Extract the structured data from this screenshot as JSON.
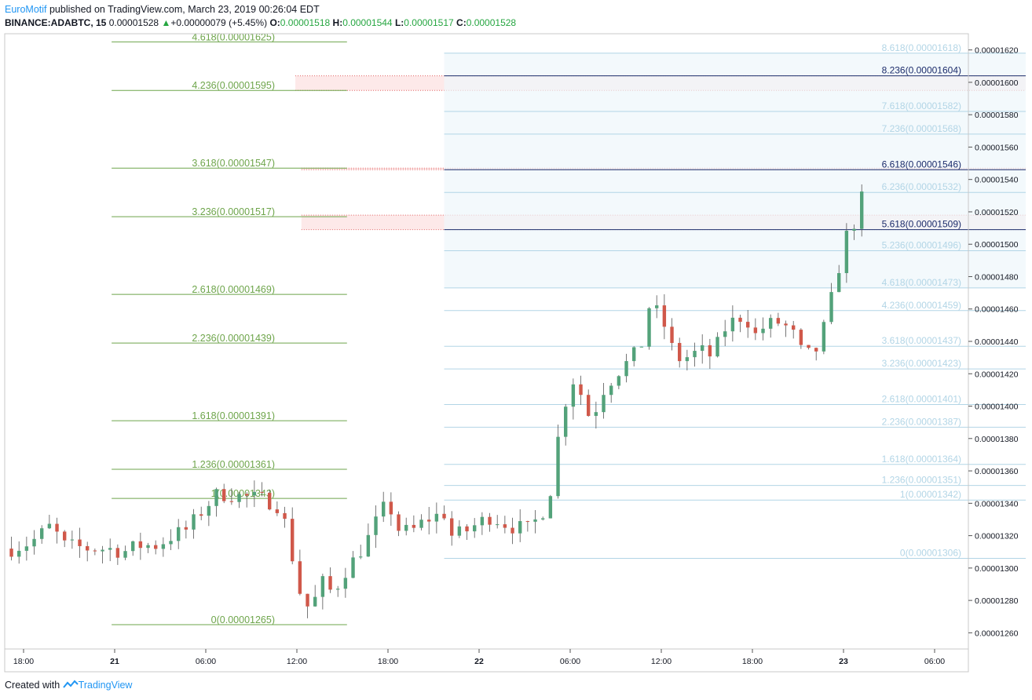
{
  "header": {
    "author": "EuroMotif",
    "published_text": " published on TradingView.com, March 23, 2019 00:26:04 EDT",
    "symbol": "BINANCE:ADABTC, 15",
    "last": "0.00001528",
    "change": "+0.00000079 (+5.45%)",
    "o_label": "O:",
    "o_value": "0.00001518",
    "h_label": "H:",
    "h_value": "0.00001544",
    "l_label": "L:",
    "l_value": "0.00001517",
    "c_label": "C:",
    "c_value": "0.00001528"
  },
  "footer": {
    "created_with": "Created with",
    "brand": "TradingView"
  },
  "colors": {
    "up": "#53a27a",
    "down": "#d0584a",
    "fib_left": "#6ea54b",
    "fib_right": "#b2d5e6",
    "fib_right_dark": "#1c2c6b",
    "axis": "#131722",
    "grid_border": "#c8c8c8"
  },
  "chart_data": {
    "type": "candlestick",
    "y_axis": {
      "min": 1.25e-05,
      "max": 1.63e-05,
      "ticks": [
        "0.00001260",
        "0.00001280",
        "0.00001300",
        "0.00001320",
        "0.00001340",
        "0.00001360",
        "0.00001380",
        "0.00001400",
        "0.00001420",
        "0.00001440",
        "0.00001460",
        "0.00001480",
        "0.00001500",
        "0.00001520",
        "0.00001540",
        "0.00001560",
        "0.00001580",
        "0.00001600",
        "0.00001620"
      ]
    },
    "x_axis": {
      "labels": [
        {
          "t": 18,
          "text": "18:00",
          "bold": false
        },
        {
          "t": 24,
          "text": "21",
          "bold": true
        },
        {
          "t": 30,
          "text": "06:00",
          "bold": false
        },
        {
          "t": 36,
          "text": "12:00",
          "bold": false
        },
        {
          "t": 42,
          "text": "18:00",
          "bold": false
        },
        {
          "t": 48,
          "text": "22",
          "bold": true
        },
        {
          "t": 54,
          "text": "06:00",
          "bold": false
        },
        {
          "t": 60,
          "text": "12:00",
          "bold": false
        },
        {
          "t": 66,
          "text": "18:00",
          "bold": false
        },
        {
          "t": 72,
          "text": "23",
          "bold": true
        },
        {
          "t": 78,
          "text": "06:00",
          "bold": false
        }
      ],
      "t_start": 17.2,
      "t_end": 84.0
    },
    "price_path": [
      [
        17.2,
        1.312e-05
      ],
      [
        18.5,
        1.316e-05
      ],
      [
        19.8,
        1.326e-05
      ],
      [
        20.7,
        1.314e-05
      ],
      [
        22.3,
        1.312e-05
      ],
      [
        23.6,
        1.312e-05
      ],
      [
        24.6,
        1.31e-05
      ],
      [
        25.6,
        1.314e-05
      ],
      [
        26.8,
        1.314e-05
      ],
      [
        27.8,
        1.32e-05
      ],
      [
        28.8,
        1.324e-05
      ],
      [
        29.8,
        1.336e-05
      ],
      [
        30.8,
        1.346e-05
      ],
      [
        32.6,
        1.344e-05
      ],
      [
        34.0,
        1.342e-05
      ],
      [
        34.9,
        1.338e-05
      ],
      [
        35.5,
        1.318e-05
      ],
      [
        36.0,
        1.29e-05
      ],
      [
        36.6,
        1.276e-05
      ],
      [
        37.1,
        1.278e-05
      ],
      [
        37.6,
        1.292e-05
      ],
      [
        38.4,
        1.284e-05
      ],
      [
        39.0,
        1.296e-05
      ],
      [
        40.0,
        1.308e-05
      ],
      [
        40.8,
        1.32e-05
      ],
      [
        41.6,
        1.336e-05
      ],
      [
        42.1,
        1.338e-05
      ],
      [
        42.7,
        1.324e-05
      ],
      [
        43.5,
        1.322e-05
      ],
      [
        44.5,
        1.33e-05
      ],
      [
        45.8,
        1.334e-05
      ],
      [
        46.2,
        1.32e-05
      ],
      [
        47.0,
        1.322e-05
      ],
      [
        48.0,
        1.328e-05
      ],
      [
        48.8,
        1.332e-05
      ],
      [
        50.0,
        1.326e-05
      ],
      [
        51.2,
        1.324e-05
      ],
      [
        52.0,
        1.332e-05
      ],
      [
        52.6,
        1.342e-05
      ],
      [
        53.2,
        1.38e-05
      ],
      [
        53.8,
        1.408e-05
      ],
      [
        54.3,
        1.418e-05
      ],
      [
        55.0,
        1.4e-05
      ],
      [
        55.4,
        1.39e-05
      ],
      [
        56.0,
        1.408e-05
      ],
      [
        57.0,
        1.42e-05
      ],
      [
        58.1,
        1.43e-05
      ],
      [
        58.8,
        1.44e-05
      ],
      [
        59.1,
        1.462e-05
      ],
      [
        59.7,
        1.458e-05
      ],
      [
        60.3,
        1.448e-05
      ],
      [
        60.7,
        1.436e-05
      ],
      [
        61.3,
        1.428e-05
      ],
      [
        62.0,
        1.432e-05
      ],
      [
        62.8,
        1.434e-05
      ],
      [
        63.4,
        1.43e-05
      ],
      [
        64.0,
        1.446e-05
      ],
      [
        64.9,
        1.454e-05
      ],
      [
        65.5,
        1.456e-05
      ],
      [
        66.3,
        1.442e-05
      ],
      [
        66.8,
        1.45e-05
      ],
      [
        67.9,
        1.452e-05
      ],
      [
        68.7,
        1.444e-05
      ],
      [
        69.4,
        1.43e-05
      ],
      [
        70.4,
        1.436e-05
      ],
      [
        71.0,
        1.46e-05
      ],
      [
        71.6,
        1.478e-05
      ],
      [
        72.0,
        1.51e-05
      ],
      [
        72.5,
        1.498e-05
      ],
      [
        73.0,
        1.536e-05
      ],
      [
        73.2,
        1.528e-05
      ]
    ],
    "fib_left": {
      "x_start": 23.8,
      "x_end": 39.3,
      "levels": [
        {
          "label": "4.618(0.00001625)",
          "price": 1.625e-05
        },
        {
          "label": "4.236(0.00001595)",
          "price": 1.595e-05
        },
        {
          "label": "3.618(0.00001547)",
          "price": 1.547e-05
        },
        {
          "label": "3.236(0.00001517)",
          "price": 1.517e-05
        },
        {
          "label": "2.618(0.00001469)",
          "price": 1.469e-05
        },
        {
          "label": "2.236(0.00001439)",
          "price": 1.439e-05
        },
        {
          "label": "1.618(0.00001391)",
          "price": 1.391e-05
        },
        {
          "label": "1.236(0.00001361)",
          "price": 1.361e-05
        },
        {
          "label": "1(0.00001343)",
          "price": 1.343e-05
        },
        {
          "label": "0(0.00001265)",
          "price": 1.265e-05
        }
      ]
    },
    "fib_right": {
      "x_start": 45.7,
      "x_end": 84.0,
      "levels": [
        {
          "label": "8.618(0.00001618)",
          "price": 1.618e-05,
          "emph": false
        },
        {
          "label": "8.236(0.00001604)",
          "price": 1.604e-05,
          "emph": true
        },
        {
          "label": "7.618(0.00001582)",
          "price": 1.582e-05,
          "emph": false
        },
        {
          "label": "7.236(0.00001568)",
          "price": 1.568e-05,
          "emph": false
        },
        {
          "label": "6.618(0.00001546)",
          "price": 1.546e-05,
          "emph": true
        },
        {
          "label": "6.236(0.00001532)",
          "price": 1.532e-05,
          "emph": false
        },
        {
          "label": "5.618(0.00001509)",
          "price": 1.509e-05,
          "emph": true
        },
        {
          "label": "5.236(0.00001496)",
          "price": 1.496e-05,
          "emph": false
        },
        {
          "label": "4.618(0.00001473)",
          "price": 1.473e-05,
          "emph": false
        },
        {
          "label": "4.236(0.00001459)",
          "price": 1.459e-05,
          "emph": false
        },
        {
          "label": "3.618(0.00001437)",
          "price": 1.437e-05,
          "emph": false
        },
        {
          "label": "3.236(0.00001423)",
          "price": 1.423e-05,
          "emph": false
        },
        {
          "label": "2.618(0.00001401)",
          "price": 1.401e-05,
          "emph": false
        },
        {
          "label": "2.236(0.00001387)",
          "price": 1.387e-05,
          "emph": false
        },
        {
          "label": "1.618(0.00001364)",
          "price": 1.364e-05,
          "emph": false
        },
        {
          "label": "1.236(0.00001351)",
          "price": 1.351e-05,
          "emph": false
        },
        {
          "label": "1(0.00001342)",
          "price": 1.342e-05,
          "emph": false
        },
        {
          "label": "0(0.00001306)",
          "price": 1.306e-05,
          "emph": false
        }
      ]
    },
    "zones": [
      {
        "t_start": 35.9,
        "t_end": 84.0,
        "p_top": 1.604e-05,
        "p_bottom": 1.595e-05
      },
      {
        "t_start": 36.3,
        "t_end": 84.0,
        "p_top": 1.547e-05,
        "p_bottom": 1.546e-05
      },
      {
        "t_start": 36.3,
        "t_end": 84.0,
        "p_top": 1.518e-05,
        "p_bottom": 1.509e-05
      }
    ]
  }
}
